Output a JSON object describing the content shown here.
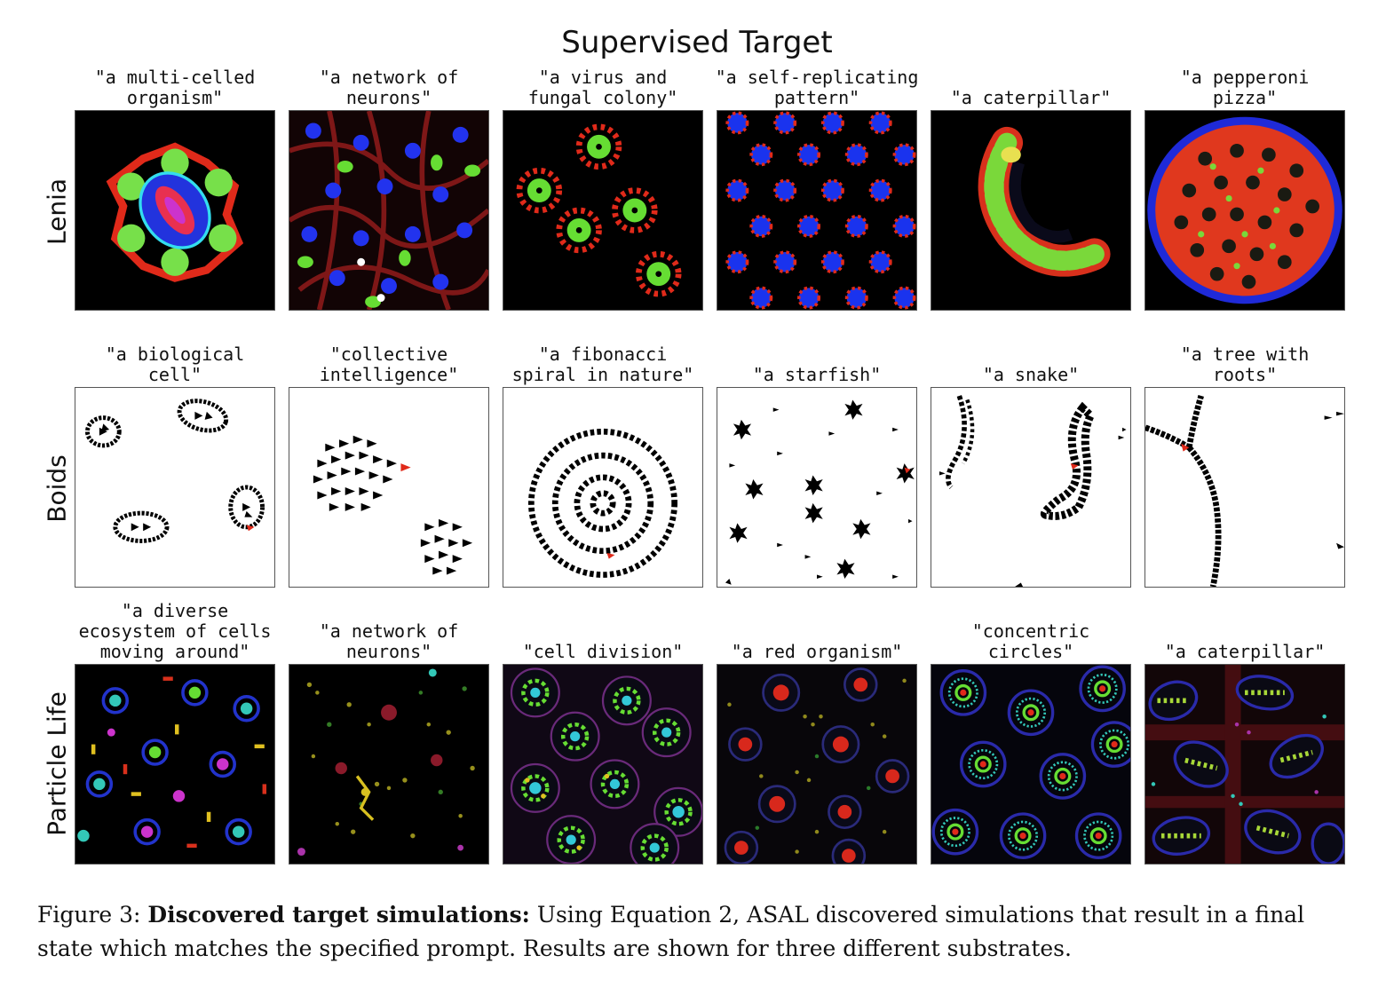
{
  "figure_title": "Supervised Target",
  "rows": [
    {
      "label": "Lenia",
      "panels": [
        {
          "prompt": "\"a multi-celled\norganism\"",
          "style": "lenia-organism"
        },
        {
          "prompt": "\"a network of\nneurons\"",
          "style": "lenia-neurons"
        },
        {
          "prompt": "\"a virus and\nfungal colony\"",
          "style": "lenia-virus"
        },
        {
          "prompt": "\"a self-replicating\npattern\"",
          "style": "lenia-selfrep"
        },
        {
          "prompt": "\"a caterpillar\"",
          "style": "lenia-caterpillar"
        },
        {
          "prompt": "\"a pepperoni\npizza\"",
          "style": "lenia-pizza"
        }
      ]
    },
    {
      "label": "Boids",
      "panels": [
        {
          "prompt": "\"a biological\ncell\"",
          "style": "boids-cell"
        },
        {
          "prompt": "\"collective\nintelligence\"",
          "style": "boids-collective"
        },
        {
          "prompt": "\"a fibonacci\nspiral in nature\"",
          "style": "boids-spiral"
        },
        {
          "prompt": "\"a starfish\"",
          "style": "boids-starfish"
        },
        {
          "prompt": "\"a snake\"",
          "style": "boids-snake"
        },
        {
          "prompt": "\"a tree with\nroots\"",
          "style": "boids-tree"
        }
      ]
    },
    {
      "label": "Particle Life",
      "panels": [
        {
          "prompt": "\"a diverse\necosystem of cells\nmoving around\"",
          "style": "pl-ecosystem"
        },
        {
          "prompt": "\"a network of\nneurons\"",
          "style": "pl-neurons"
        },
        {
          "prompt": "\"cell division\"",
          "style": "pl-division"
        },
        {
          "prompt": "\"a red organism\"",
          "style": "pl-red"
        },
        {
          "prompt": "\"concentric\ncircles\"",
          "style": "pl-concentric"
        },
        {
          "prompt": "\"a caterpillar\"",
          "style": "pl-caterpillar"
        }
      ]
    }
  ],
  "caption": {
    "prefix": "Figure 3: ",
    "bold": "Discovered target simulations:",
    "text": " Using Equation 2, ASAL discovered simulations that result in a final state which matches the specified prompt. Results are shown for three different substrates."
  }
}
